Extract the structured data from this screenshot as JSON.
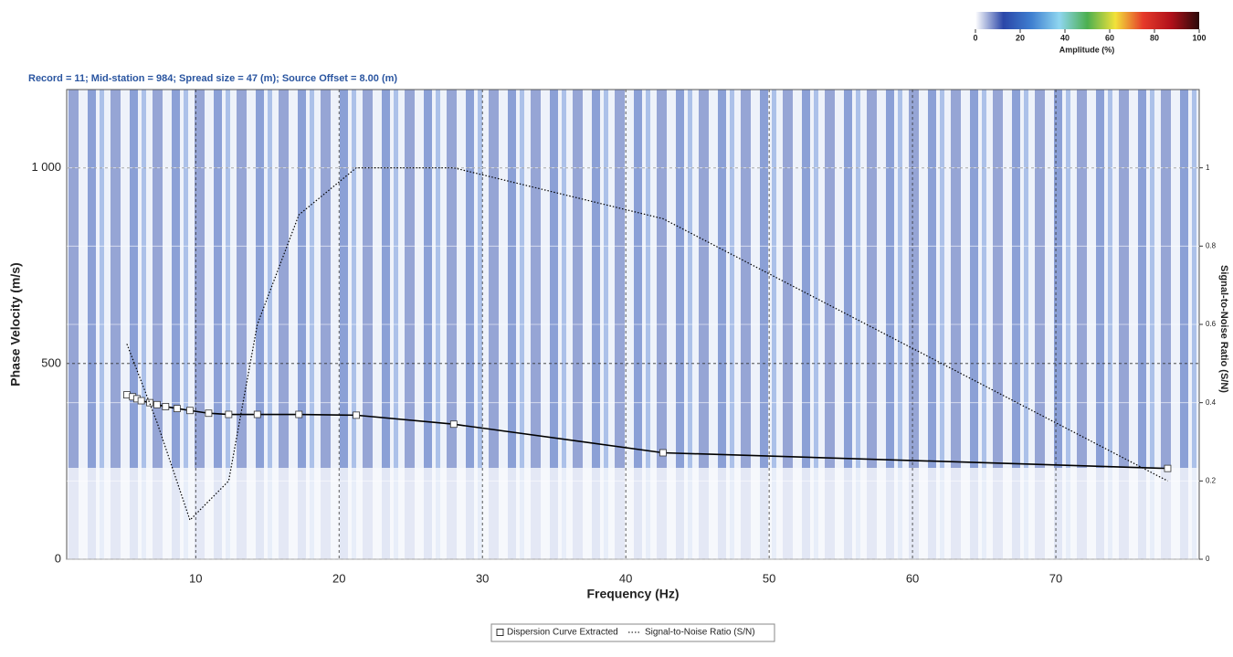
{
  "chart_data": {
    "type": "line",
    "title": "Record = 11; Mid-station = 984; Spread size = 47 (m); Source Offset = 8.00 (m)",
    "x_label": "Frequency (Hz)",
    "y_label": "Phase Velocity (m/s)",
    "y2_label": "Signal-to-Noise Ratio (S/N)",
    "xlim": [
      1,
      80
    ],
    "xticks": [
      10,
      20,
      30,
      40,
      50,
      60,
      70
    ],
    "ylim": [
      0,
      1200
    ],
    "yticks": [
      0,
      500,
      {
        "value": 1000,
        "label": "1 000"
      }
    ],
    "y2lim": [
      0,
      1.2
    ],
    "y2ticks": [
      0,
      0.2,
      0.4,
      0.6,
      0.8,
      1
    ],
    "grid": true,
    "legend": "bottom",
    "series": [
      {
        "name": "Dispersion Curve Extracted",
        "color": "#000000",
        "marker": "square",
        "x": [
          5.2,
          5.6,
          5.9,
          6.2,
          6.8,
          7.3,
          7.9,
          8.7,
          9.6,
          10.9,
          12.3,
          14.3,
          17.2,
          21.2,
          28.0,
          42.6,
          77.8
        ],
        "values": [
          420,
          415,
          410,
          405,
          400,
          395,
          390,
          385,
          380,
          373,
          370,
          370,
          370,
          368,
          345,
          272,
          232
        ]
      },
      {
        "name": "Signal-to-Noise Ratio (S/N)",
        "color": "#000000",
        "dash": "dotted",
        "axis": "y2",
        "x": [
          5.2,
          7.3,
          9.6,
          12.3,
          14.3,
          17.2,
          21.2,
          28.0,
          42.6,
          77.8
        ],
        "values": [
          0.55,
          0.35,
          0.1,
          0.2,
          0.6,
          0.88,
          1.0,
          1.0,
          0.87,
          0.2
        ]
      }
    ],
    "colorbar": {
      "label": "Amplitude (%)",
      "lim": [
        0,
        100
      ],
      "ticks": [
        0,
        20,
        40,
        60,
        80,
        100
      ],
      "colors": [
        "#ffffff",
        "#2a46a8",
        "#3f7fd0",
        "#8fd6f0",
        "#4caf50",
        "#f2e23a",
        "#e53a2a",
        "#b0101a",
        "#2a0a0a"
      ]
    }
  }
}
